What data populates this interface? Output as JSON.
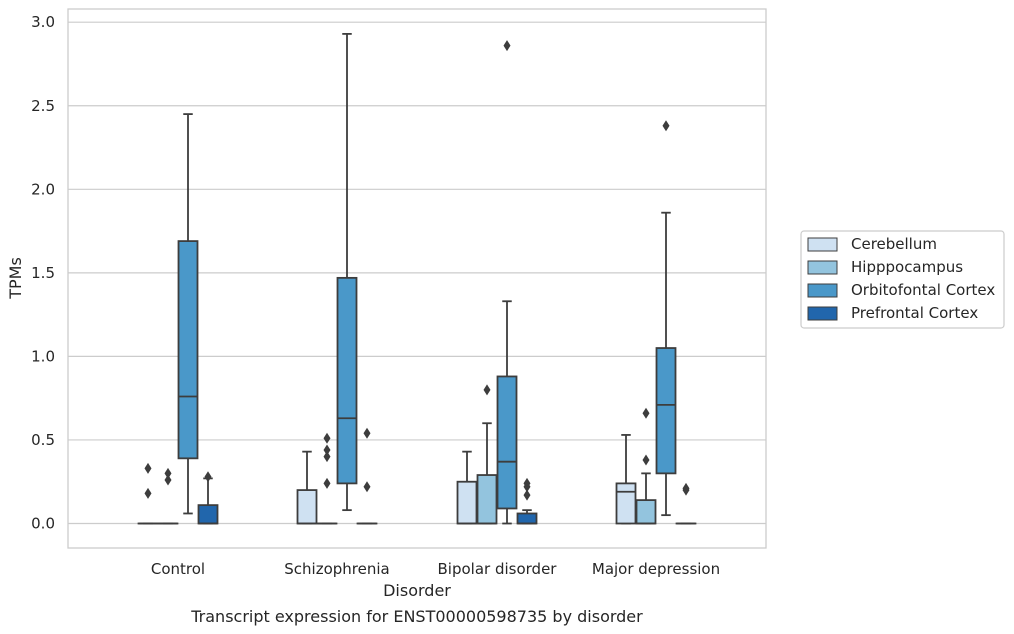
{
  "chart_data": {
    "type": "box",
    "title": "",
    "caption": "Transcript expression for ENST00000598735 by disorder",
    "xlabel": "Disorder",
    "ylabel": "TPMs",
    "ylim": [
      -0.14,
      3.08
    ],
    "yticks": [
      "0.0",
      "0.5",
      "1.0",
      "1.5",
      "2.0",
      "2.5",
      "3.0"
    ],
    "grid": true,
    "legend_position": "right",
    "categories": [
      "Control",
      "Schizophrenia",
      "Bipolar disorder",
      "Major depression"
    ],
    "series": [
      {
        "name": "Cerebellum",
        "color": "#cfe1f2",
        "boxes": [
          {
            "q1": 0,
            "median": 0,
            "q3": 0,
            "whisker_low": 0,
            "whisker_high": 0,
            "outliers": [
              0.18,
              0.33
            ]
          },
          {
            "q1": 0,
            "median": 0,
            "q3": 0.2,
            "whisker_low": 0,
            "whisker_high": 0.43,
            "outliers": []
          },
          {
            "q1": 0,
            "median": 0,
            "q3": 0.25,
            "whisker_low": 0,
            "whisker_high": 0.43,
            "outliers": []
          },
          {
            "q1": 0,
            "median": 0.19,
            "q3": 0.24,
            "whisker_low": 0,
            "whisker_high": 0.53,
            "outliers": []
          }
        ]
      },
      {
        "name": "Hipppocampus",
        "color": "#93c4de",
        "boxes": [
          {
            "q1": 0,
            "median": 0,
            "q3": 0,
            "whisker_low": 0,
            "whisker_high": 0,
            "outliers": [
              0.26,
              0.3
            ]
          },
          {
            "q1": 0,
            "median": 0,
            "q3": 0,
            "whisker_low": 0,
            "whisker_high": 0,
            "outliers": [
              0.24,
              0.4,
              0.44,
              0.51
            ]
          },
          {
            "q1": 0,
            "median": 0,
            "q3": 0.29,
            "whisker_low": 0,
            "whisker_high": 0.6,
            "outliers": [
              0.8
            ]
          },
          {
            "q1": 0,
            "median": 0,
            "q3": 0.14,
            "whisker_low": 0,
            "whisker_high": 0.3,
            "outliers": [
              0.38,
              0.66
            ]
          }
        ]
      },
      {
        "name": "Orbitofontal Cortex",
        "color": "#4a98c9",
        "boxes": [
          {
            "q1": 0.39,
            "median": 0.76,
            "q3": 1.69,
            "whisker_low": 0.06,
            "whisker_high": 2.45,
            "outliers": []
          },
          {
            "q1": 0.24,
            "median": 0.63,
            "q3": 1.47,
            "whisker_low": 0.08,
            "whisker_high": 2.93,
            "outliers": []
          },
          {
            "q1": 0.09,
            "median": 0.37,
            "q3": 0.88,
            "whisker_low": 0,
            "whisker_high": 1.33,
            "outliers": [
              2.86
            ]
          },
          {
            "q1": 0.3,
            "median": 0.71,
            "q3": 1.05,
            "whisker_low": 0.05,
            "whisker_high": 1.86,
            "outliers": [
              2.38
            ]
          }
        ]
      },
      {
        "name": "Prefrontal Cortex",
        "color": "#2166ac",
        "boxes": [
          {
            "q1": 0,
            "median": 0,
            "q3": 0.11,
            "whisker_low": 0,
            "whisker_high": 0.27,
            "outliers": [
              0.28
            ]
          },
          {
            "q1": 0,
            "median": 0,
            "q3": 0,
            "whisker_low": 0,
            "whisker_high": 0,
            "outliers": [
              0.22,
              0.54
            ]
          },
          {
            "q1": 0,
            "median": 0,
            "q3": 0.06,
            "whisker_low": 0,
            "whisker_high": 0.08,
            "outliers": [
              0.17,
              0.22,
              0.24
            ]
          },
          {
            "q1": 0,
            "median": 0,
            "q3": 0,
            "whisker_low": 0,
            "whisker_high": 0,
            "outliers": [
              0.2,
              0.21
            ]
          }
        ]
      }
    ]
  }
}
